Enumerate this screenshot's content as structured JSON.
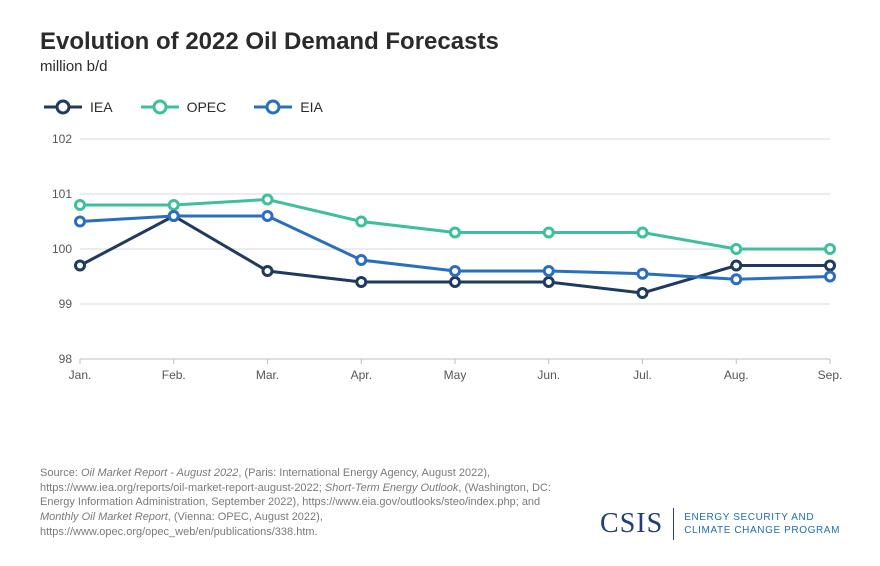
{
  "title": "Evolution of 2022 Oil Demand Forecasts",
  "subtitle": "million b/d",
  "chart": {
    "type": "line",
    "categories": [
      "Jan.",
      "Feb.",
      "Mar.",
      "Apr.",
      "May",
      "Jun.",
      "Jul.",
      "Aug.",
      "Sep."
    ],
    "ylim": [
      98,
      102
    ],
    "yticks": [
      98,
      99,
      100,
      101,
      102
    ],
    "grid_color": "#d9d9d9",
    "baseline_color": "#bfbfbf",
    "background_color": "#ffffff",
    "axis_font_size": 12,
    "axis_text_color": "#555555",
    "line_width": 3,
    "marker_radius": 4.5,
    "marker_fill": "#ffffff",
    "series": [
      {
        "name": "IEA",
        "color": "#1f3a5f",
        "values": [
          99.7,
          100.6,
          99.6,
          99.4,
          99.4,
          99.4,
          99.2,
          99.7,
          99.7
        ]
      },
      {
        "name": "OPEC",
        "color": "#3fbf9c",
        "values": [
          100.8,
          100.8,
          100.9,
          100.5,
          100.3,
          100.3,
          100.3,
          100.0,
          100.0
        ]
      },
      {
        "name": "EIA",
        "color": "#2a6fbf",
        "values": [
          100.5,
          100.6,
          100.6,
          99.8,
          99.6,
          99.6,
          99.55,
          99.45,
          99.5
        ]
      }
    ]
  },
  "legend": [
    "IEA",
    "OPEC",
    "EIA"
  ],
  "source_parts": {
    "prefix": "Source: ",
    "s1_title": "Oil Market Report - August 2022",
    "s1_rest": ", (Paris: International Energy Agency, August 2022), https://www.iea.org/reports/oil-market-report-august-2022; ",
    "s2_title": "Short-Term Energy Outlook",
    "s2_rest": ", (Washington, DC: Energy Information Administration, September 2022), https://www.eia.gov/outlooks/steo/index.php; and ",
    "s3_title": "Monthly Oil Market Report",
    "s3_rest": ", (Vienna: OPEC, August 2022), https://www.opec.org/opec_web/en/publications/338.htm."
  },
  "logo": {
    "mark": "CSIS",
    "sub1": "ENERGY SECURITY AND",
    "sub2": "CLIMATE CHANGE PROGRAM"
  }
}
